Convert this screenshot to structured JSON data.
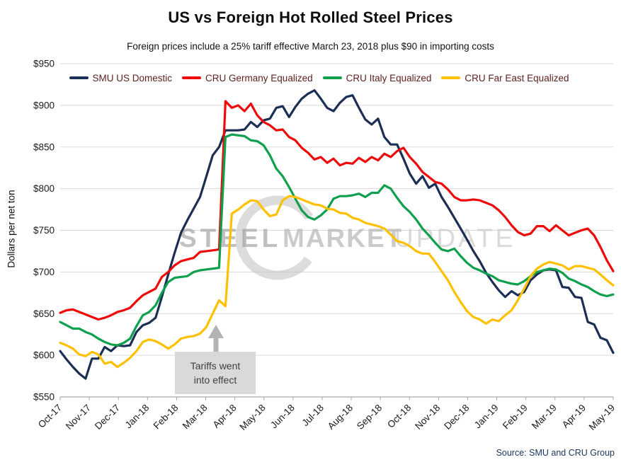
{
  "title": "US vs Foreign Hot Rolled Steel Prices",
  "subtitle": "Foreign prices include a 25% tariff effective March 23, 2018 plus $90 in importing costs",
  "y_axis": {
    "title": "Dollars per net ton",
    "tick_prefix": "$",
    "ticks": [
      550,
      600,
      650,
      700,
      750,
      800,
      850,
      900,
      950
    ]
  },
  "x_axis": {
    "ticks": [
      "Oct-17",
      "Nov-17",
      "Dec-17",
      "Jan-18",
      "Feb-18",
      "Mar-18",
      "Apr-18",
      "May-18",
      "Jun-18",
      "Jul-18",
      "Aug-18",
      "Sep-18",
      "Oct-18",
      "Nov-18",
      "Dec-18",
      "Jan-19",
      "Feb-19",
      "Mar-19",
      "Apr-19",
      "May-19"
    ]
  },
  "annotation": {
    "line1": "Tariffs went",
    "line2": "into effect"
  },
  "watermark": {
    "word1": "STEEL",
    "word2": "MARKET",
    "word3": "UPDATE"
  },
  "source": "Source: SMU and CRU Group",
  "colors": {
    "smu_us_domestic": "#1b2f55",
    "cru_germany": "#ee0a0a",
    "cru_italy": "#0fa04e",
    "cru_far_east": "#ffc000",
    "gridline": "#d9d9d9",
    "axis": "#a6a6a6",
    "legend_text": "#5f2120",
    "annotation_bg": "#d9d9d9",
    "annotation_arrow": "#b3b3b3"
  },
  "chart_data": {
    "type": "line",
    "title": "US vs Foreign Hot Rolled Steel Prices",
    "subtitle": "Foreign prices include a 25% tariff effective March 23, 2018 plus $90 in importing costs",
    "ylabel": "Dollars per net ton",
    "ylim": [
      550,
      950
    ],
    "grid_step": 50,
    "grid": "horizontal",
    "legend_position": "top",
    "x_unit": "weekly",
    "x_start": "Oct-2017",
    "x_end": "Jun-2019",
    "n_points": 88,
    "event_annotation": "Tariffs went into effect (March 23, 2018)",
    "series": [
      {
        "name": "SMU US Domestic",
        "color": "#1b2f55",
        "values": [
          605,
          595,
          586,
          578,
          572,
          596,
          596,
          610,
          605,
          612,
          611,
          612,
          628,
          636,
          639,
          645,
          670,
          697,
          723,
          747,
          762,
          776,
          790,
          815,
          840,
          850,
          870,
          870,
          870,
          871,
          880,
          874,
          882,
          884,
          897,
          899,
          886,
          898,
          908,
          914,
          918,
          908,
          897,
          893,
          903,
          910,
          912,
          897,
          883,
          877,
          884,
          862,
          853,
          853,
          836,
          818,
          806,
          815,
          801,
          806,
          790,
          778,
          765,
          752,
          739,
          725,
          713,
          699,
          688,
          678,
          670,
          677,
          672,
          676,
          690,
          697,
          702,
          703,
          702,
          682,
          681,
          670,
          669,
          640,
          637,
          621,
          618,
          603
        ]
      },
      {
        "name": "CRU Germany Equalized",
        "color": "#ee0a0a",
        "values": [
          651,
          654,
          655,
          652,
          649,
          646,
          643,
          645,
          648,
          652,
          654,
          657,
          665,
          672,
          676,
          680,
          694,
          700,
          708,
          713,
          715,
          717,
          724,
          725,
          726,
          727,
          905,
          897,
          900,
          893,
          902,
          888,
          880,
          876,
          870,
          871,
          862,
          858,
          849,
          843,
          835,
          838,
          831,
          836,
          828,
          831,
          830,
          837,
          832,
          838,
          834,
          842,
          838,
          845,
          849,
          838,
          830,
          820,
          814,
          808,
          806,
          799,
          790,
          786,
          786,
          787,
          786,
          783,
          780,
          774,
          766,
          756,
          748,
          744,
          746,
          755,
          755,
          749,
          756,
          750,
          744,
          747,
          750,
          752,
          744,
          730,
          714,
          701
        ]
      },
      {
        "name": "CRU Italy Equalized",
        "color": "#0fa04e",
        "values": [
          640,
          636,
          632,
          632,
          628,
          625,
          620,
          616,
          613,
          612,
          615,
          620,
          635,
          648,
          652,
          660,
          675,
          688,
          693,
          694,
          695,
          700,
          702,
          703,
          704,
          705,
          862,
          865,
          864,
          863,
          858,
          857,
          852,
          840,
          824,
          815,
          802,
          788,
          774,
          766,
          763,
          768,
          775,
          788,
          791,
          791,
          792,
          794,
          790,
          795,
          795,
          804,
          800,
          789,
          779,
          772,
          763,
          752,
          744,
          735,
          727,
          725,
          728,
          719,
          711,
          705,
          702,
          698,
          695,
          690,
          688,
          686,
          685,
          689,
          695,
          700,
          702,
          704,
          703,
          699,
          692,
          689,
          685,
          682,
          677,
          673,
          671,
          673
        ]
      },
      {
        "name": "CRU Far East Equalized",
        "color": "#ffc000",
        "values": [
          615,
          612,
          608,
          601,
          599,
          604,
          601,
          590,
          592,
          586,
          591,
          597,
          605,
          616,
          619,
          617,
          613,
          608,
          613,
          620,
          622,
          623,
          626,
          634,
          650,
          666,
          659,
          770,
          775,
          781,
          786,
          785,
          775,
          767,
          769,
          786,
          791,
          790,
          787,
          784,
          781,
          780,
          776,
          775,
          771,
          770,
          765,
          763,
          759,
          757,
          755,
          752,
          745,
          737,
          735,
          731,
          725,
          722,
          722,
          712,
          701,
          690,
          676,
          664,
          653,
          646,
          643,
          638,
          643,
          641,
          648,
          654,
          666,
          680,
          695,
          704,
          709,
          712,
          710,
          708,
          703,
          707,
          707,
          705,
          703,
          697,
          690,
          684
        ]
      }
    ]
  }
}
